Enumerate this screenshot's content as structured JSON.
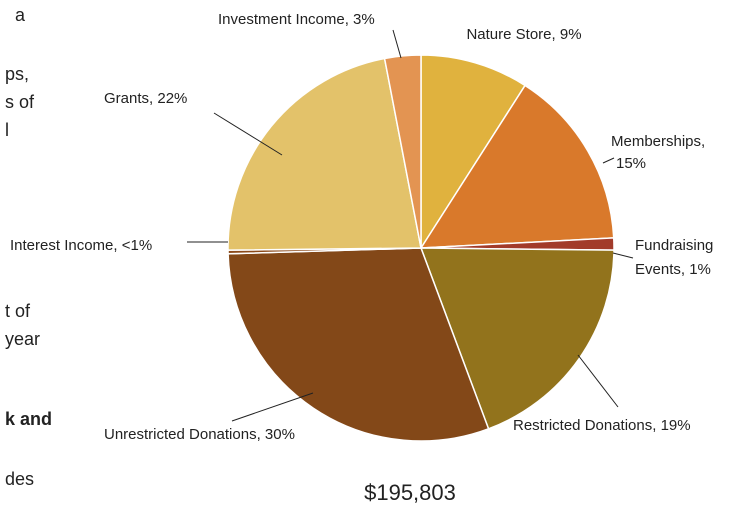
{
  "chart_data": {
    "type": "pie",
    "labels": [
      [
        "Nature Store, 9%"
      ],
      [
        "Memberships,",
        "15%"
      ],
      [
        "Fundraising",
        "Events, 1%"
      ],
      [
        "Restricted Donations, 19%"
      ],
      [
        "Unrestricted Donations, 30%"
      ],
      [
        "Interest Income, <1%"
      ],
      [
        "Grants, 22%"
      ],
      [
        "Investment Income, 3%"
      ]
    ],
    "values": [
      9,
      15,
      1,
      19,
      30,
      0.3,
      22,
      3
    ],
    "value_labels": [
      "9%",
      "15%",
      "1%",
      "19%",
      "30%",
      "<1%",
      "22%",
      "3%"
    ],
    "colors": [
      "#E0B23E",
      "#D9792B",
      "#A23B2A",
      "#92731C",
      "#834818",
      "#8C4A1A",
      "#E3C26A",
      "#E39452"
    ],
    "total": "$195,803"
  },
  "side_text": [
    "a",
    "ps,",
    "s of",
    "l",
    "t of",
    "year",
    "k and",
    "des"
  ]
}
